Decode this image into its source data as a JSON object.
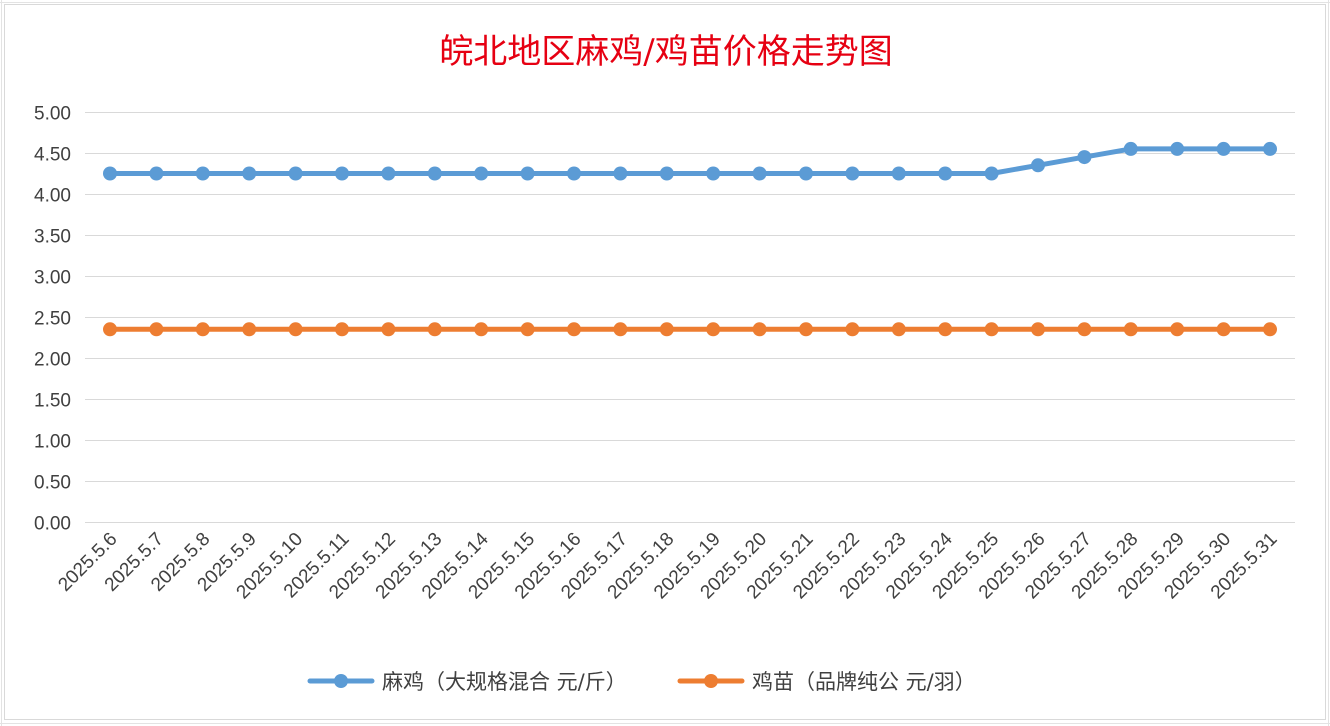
{
  "chart_data": {
    "type": "line",
    "title": "皖北地区麻鸡/鸡苗价格走势图",
    "categories": [
      "2025.5.6",
      "2025.5.7",
      "2025.5.8",
      "2025.5.9",
      "2025.5.10",
      "2025.5.11",
      "2025.5.12",
      "2025.5.13",
      "2025.5.14",
      "2025.5.15",
      "2025.5.16",
      "2025.5.17",
      "2025.5.18",
      "2025.5.19",
      "2025.5.20",
      "2025.5.21",
      "2025.5.22",
      "2025.5.23",
      "2025.5.24",
      "2025.5.25",
      "2025.5.26",
      "2025.5.27",
      "2025.5.28",
      "2025.5.29",
      "2025.5.30",
      "2025.5.31"
    ],
    "series": [
      {
        "name": "麻鸡（大规格混合 元/斤）",
        "color": "#5b9bd5",
        "values": [
          4.25,
          4.25,
          4.25,
          4.25,
          4.25,
          4.25,
          4.25,
          4.25,
          4.25,
          4.25,
          4.25,
          4.25,
          4.25,
          4.25,
          4.25,
          4.25,
          4.25,
          4.25,
          4.25,
          4.25,
          4.35,
          4.45,
          4.55,
          4.55,
          4.55,
          4.55
        ]
      },
      {
        "name": "鸡苗（品牌纯公 元/羽）",
        "color": "#ed7d31",
        "values": [
          2.35,
          2.35,
          2.35,
          2.35,
          2.35,
          2.35,
          2.35,
          2.35,
          2.35,
          2.35,
          2.35,
          2.35,
          2.35,
          2.35,
          2.35,
          2.35,
          2.35,
          2.35,
          2.35,
          2.35,
          2.35,
          2.35,
          2.35,
          2.35,
          2.35,
          2.35
        ]
      }
    ],
    "yticks": [
      "0.00",
      "0.50",
      "1.00",
      "1.50",
      "2.00",
      "2.50",
      "3.00",
      "3.50",
      "4.00",
      "4.50",
      "5.00"
    ],
    "ylim": [
      0,
      5
    ],
    "grid": true,
    "legend_position": "bottom"
  }
}
